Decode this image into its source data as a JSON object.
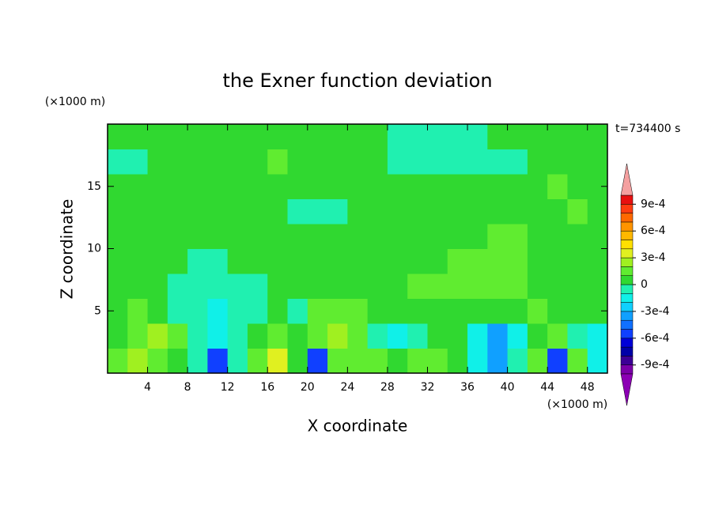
{
  "chart_data": {
    "type": "heatmap",
    "title": "the Exner function deviation",
    "x_label": "X coordinate",
    "y_label": "Z coordinate",
    "x_unit": "(×1000 m)",
    "y_unit": "(×1000 m)",
    "time_label": "t=734400 s",
    "xlim": [
      0,
      50
    ],
    "ylim": [
      0,
      20
    ],
    "xticks": [
      4,
      8,
      12,
      16,
      20,
      24,
      28,
      32,
      36,
      40,
      44,
      48
    ],
    "yticks": [
      5,
      10,
      15
    ],
    "cell_size": 2,
    "x": [
      1,
      3,
      5,
      7,
      9,
      11,
      13,
      15,
      17,
      19,
      21,
      23,
      25,
      27,
      29,
      31,
      33,
      35,
      37,
      39,
      41,
      43,
      45,
      47,
      49
    ],
    "y": [
      1,
      3,
      5,
      7,
      9,
      11,
      13,
      15,
      17,
      19
    ],
    "values": [
      [
        0.00015,
        0.00025,
        0.00015,
        5e-05,
        -5e-05,
        -0.00055,
        -5e-05,
        0.00015,
        0.00035,
        5e-05,
        -0.00055,
        0.00015,
        0.00015,
        0.00015,
        5e-05,
        0.00015,
        0.00015,
        5e-05,
        -0.00015,
        -0.00035,
        -5e-05,
        0.00015,
        -0.00055,
        0.00015,
        -0.00015
      ],
      [
        5e-05,
        0.00015,
        0.00025,
        0.00015,
        -5e-05,
        -0.00015,
        -5e-05,
        5e-05,
        0.00015,
        5e-05,
        0.00015,
        0.00025,
        0.00015,
        -5e-05,
        -0.00015,
        -5e-05,
        5e-05,
        5e-05,
        -0.00015,
        -0.00035,
        -0.00015,
        5e-05,
        0.00015,
        -5e-05,
        -0.00015
      ],
      [
        5e-05,
        0.00015,
        5e-05,
        -5e-05,
        -5e-05,
        -0.00015,
        -5e-05,
        -5e-05,
        5e-05,
        -5e-05,
        0.00015,
        0.00015,
        0.00015,
        5e-05,
        5e-05,
        5e-05,
        5e-05,
        5e-05,
        5e-05,
        5e-05,
        5e-05,
        0.00015,
        5e-05,
        5e-05,
        5e-05
      ],
      [
        5e-05,
        5e-05,
        5e-05,
        -5e-05,
        -5e-05,
        -5e-05,
        -5e-05,
        -5e-05,
        5e-05,
        5e-05,
        5e-05,
        5e-05,
        5e-05,
        5e-05,
        5e-05,
        0.00015,
        0.00015,
        0.00015,
        0.00015,
        0.00015,
        0.00015,
        5e-05,
        5e-05,
        5e-05,
        5e-05
      ],
      [
        5e-05,
        5e-05,
        5e-05,
        5e-05,
        -5e-05,
        -5e-05,
        5e-05,
        5e-05,
        5e-05,
        5e-05,
        5e-05,
        5e-05,
        5e-05,
        5e-05,
        5e-05,
        5e-05,
        5e-05,
        0.00015,
        0.00015,
        0.00015,
        0.00015,
        5e-05,
        5e-05,
        5e-05,
        5e-05
      ],
      [
        5e-05,
        5e-05,
        5e-05,
        5e-05,
        5e-05,
        5e-05,
        5e-05,
        5e-05,
        5e-05,
        5e-05,
        5e-05,
        5e-05,
        5e-05,
        5e-05,
        5e-05,
        5e-05,
        5e-05,
        5e-05,
        5e-05,
        0.00015,
        0.00015,
        5e-05,
        5e-05,
        5e-05,
        5e-05
      ],
      [
        5e-05,
        5e-05,
        5e-05,
        5e-05,
        5e-05,
        5e-05,
        5e-05,
        5e-05,
        5e-05,
        -5e-05,
        -5e-05,
        -5e-05,
        5e-05,
        5e-05,
        5e-05,
        5e-05,
        5e-05,
        5e-05,
        5e-05,
        5e-05,
        5e-05,
        5e-05,
        5e-05,
        0.00015,
        5e-05
      ],
      [
        5e-05,
        5e-05,
        5e-05,
        5e-05,
        5e-05,
        5e-05,
        5e-05,
        5e-05,
        5e-05,
        5e-05,
        5e-05,
        5e-05,
        5e-05,
        5e-05,
        5e-05,
        5e-05,
        5e-05,
        5e-05,
        5e-05,
        5e-05,
        5e-05,
        5e-05,
        0.00015,
        5e-05,
        5e-05
      ],
      [
        -5e-05,
        -5e-05,
        5e-05,
        5e-05,
        5e-05,
        5e-05,
        5e-05,
        5e-05,
        0.00015,
        5e-05,
        5e-05,
        5e-05,
        5e-05,
        5e-05,
        -5e-05,
        -5e-05,
        -5e-05,
        -5e-05,
        -5e-05,
        -5e-05,
        -5e-05,
        5e-05,
        5e-05,
        5e-05,
        5e-05
      ],
      [
        5e-05,
        5e-05,
        5e-05,
        5e-05,
        5e-05,
        5e-05,
        5e-05,
        5e-05,
        5e-05,
        5e-05,
        5e-05,
        5e-05,
        5e-05,
        5e-05,
        -5e-05,
        -5e-05,
        -5e-05,
        -5e-05,
        -5e-05,
        5e-05,
        5e-05,
        5e-05,
        5e-05,
        5e-05,
        5e-05
      ]
    ],
    "levels": [
      -0.001,
      -0.0009,
      -0.0008,
      -0.0007,
      -0.0006,
      -0.0005,
      -0.0004,
      -0.0003,
      -0.0002,
      -0.0001,
      0,
      0.0001,
      0.0002,
      0.0003,
      0.0004,
      0.0005,
      0.0006,
      0.0007,
      0.0008,
      0.0009,
      0.001
    ],
    "colors": [
      "#7a00a8",
      "#3c0096",
      "#0000a8",
      "#0000d8",
      "#1040ff",
      "#1070ff",
      "#10a0ff",
      "#10d0ff",
      "#10f0e8",
      "#20f0b0",
      "#30d830",
      "#60ec30",
      "#a0f020",
      "#e0f020",
      "#ffe000",
      "#ffb800",
      "#ff9400",
      "#ff6800",
      "#ff3c10",
      "#e81010"
    ],
    "under_color": "#8c00b4",
    "over_color": "#f4a0a0",
    "colorbar_ticks": [
      {
        "value": 0.0009,
        "label": "9e-4"
      },
      {
        "value": 0.0006,
        "label": "6e-4"
      },
      {
        "value": 0.0003,
        "label": "3e-4"
      },
      0,
      {
        "value": -0.0003,
        "label": "-3e-4"
      },
      {
        "value": -0.0006,
        "label": "-6e-4"
      },
      {
        "value": -0.0009,
        "label": "-9e-4"
      }
    ]
  }
}
